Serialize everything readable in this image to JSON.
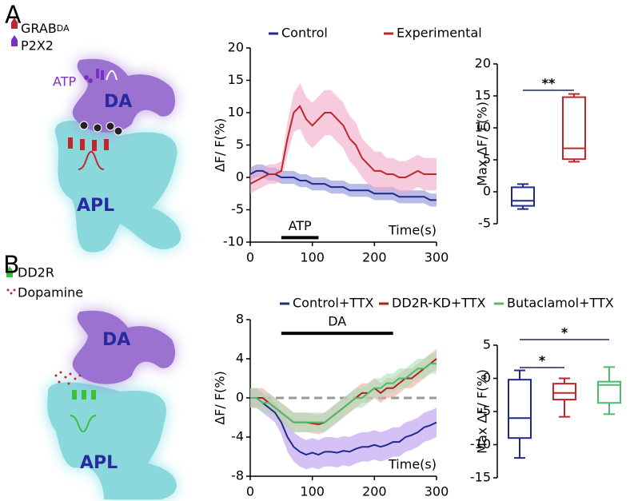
{
  "diagram": {
    "a": {
      "letter": "A",
      "legend": [
        {
          "main": "GRAB",
          "sub": "DA"
        },
        {
          "main": "P2X2"
        }
      ],
      "atp": "ATP",
      "top_cell": "DA",
      "bottom_cell": "APL"
    },
    "b": {
      "letter": "B",
      "legend": [
        {
          "main": "DD2R"
        },
        {
          "main": "Dopamine"
        }
      ],
      "top_cell": "DA",
      "bottom_cell": "APL"
    }
  },
  "chart_data": [
    {
      "type": "line",
      "ylabel": "ΔF/ F(%)",
      "xlabel": "Time(s)",
      "x": [
        0,
        10,
        20,
        30,
        40,
        50,
        60,
        70,
        80,
        90,
        100,
        110,
        120,
        130,
        140,
        150,
        160,
        170,
        180,
        190,
        200,
        210,
        220,
        230,
        240,
        250,
        260,
        270,
        280,
        290,
        300
      ],
      "series": [
        {
          "name": "Control",
          "color": "#1f2a8a",
          "band_color": "#8a8fd6",
          "values": [
            0.5,
            1,
            1,
            0.5,
            0.5,
            0,
            0,
            0,
            -0.5,
            -0.5,
            -1,
            -1,
            -1,
            -1.5,
            -1.5,
            -1.5,
            -2,
            -2,
            -2,
            -2,
            -2.5,
            -2.5,
            -2.5,
            -2.5,
            -3,
            -3,
            -3,
            -3,
            -3,
            -3.5,
            -3.5
          ],
          "error": [
            1,
            1,
            1,
            1,
            1,
            1,
            1,
            1,
            1,
            1,
            1,
            1,
            1,
            1,
            1,
            1,
            1,
            1,
            1,
            1,
            1,
            1,
            1,
            1,
            1,
            1,
            1,
            1,
            1,
            1,
            1
          ]
        },
        {
          "name": "Experimental",
          "color": "#c0272d",
          "band_color": "#f0a8c8",
          "values": [
            -1,
            -0.5,
            0,
            0.5,
            0.5,
            1,
            6,
            10,
            11,
            9,
            8,
            9,
            10,
            10,
            9,
            8,
            6,
            5,
            3,
            2,
            1,
            1,
            0.5,
            0.5,
            0,
            0,
            0.5,
            1,
            0.5,
            0.5,
            0.5
          ],
          "error": [
            1.5,
            1.5,
            1.5,
            1.5,
            1.5,
            1.5,
            2.5,
            3,
            3.5,
            3.5,
            3.5,
            3.5,
            3.5,
            3.5,
            3.5,
            3.5,
            3.5,
            3.5,
            3,
            3,
            3,
            3,
            2.5,
            2.5,
            2.5,
            2.5,
            2.5,
            2.5,
            2.5,
            2.5,
            2.5
          ]
        }
      ],
      "xlim": [
        0,
        300
      ],
      "xticks": [
        0,
        100,
        200,
        300
      ],
      "ylim": [
        -10,
        20
      ],
      "yticks": [
        -10,
        -5,
        0,
        5,
        10,
        15,
        20
      ],
      "annotation": {
        "label": "ATP",
        "x": [
          50,
          110
        ],
        "y": -9.3
      }
    },
    {
      "type": "box",
      "ylabel": "Max ΔF/ F(%)",
      "series": [
        {
          "color": "#1f2a8a",
          "min": -2.7,
          "q1": -2.2,
          "median": -1.4,
          "q3": 0.7,
          "max": 1.2
        },
        {
          "color": "#c0272d",
          "min": 4.7,
          "q1": 5.1,
          "median": 6.8,
          "q3": 14.8,
          "max": 15.3
        }
      ],
      "ylim": [
        -5,
        20
      ],
      "yticks": [
        -5,
        0,
        5,
        10,
        15,
        20
      ],
      "significance": [
        "**"
      ]
    },
    {
      "type": "line",
      "ylabel": "ΔF/ F(%)",
      "xlabel": "Time(s)",
      "x": [
        0,
        10,
        20,
        30,
        40,
        50,
        60,
        70,
        80,
        90,
        100,
        110,
        120,
        130,
        140,
        150,
        160,
        170,
        180,
        190,
        200,
        210,
        220,
        230,
        240,
        250,
        260,
        270,
        280,
        290,
        300
      ],
      "series": [
        {
          "name": "Control+TTX",
          "color": "#1f2a8a",
          "band_color": "#b79af0",
          "values": [
            0,
            0,
            -0.5,
            -1,
            -1.5,
            -2.5,
            -4,
            -5,
            -5.5,
            -5.8,
            -5.6,
            -5.8,
            -5.5,
            -5.5,
            -5.6,
            -5.4,
            -5.5,
            -5.2,
            -5,
            -5,
            -4.8,
            -5,
            -4.8,
            -4.5,
            -4.5,
            -4,
            -3.8,
            -3.5,
            -3,
            -2.8,
            -2.5
          ],
          "error": [
            1,
            1,
            1,
            1,
            1,
            1.2,
            1.5,
            1.5,
            1.5,
            1.5,
            1.5,
            1.5,
            1.5,
            1.5,
            1.5,
            1.5,
            1.5,
            1.5,
            1.5,
            1.5,
            1.5,
            1.5,
            1.5,
            1.5,
            1.5,
            1.5,
            1.5,
            1.5,
            1.5,
            1.5,
            1.5
          ]
        },
        {
          "name": "DD2R-KD+TTX",
          "color": "#b0201f",
          "band_color": "#f0a8a0",
          "values": [
            0,
            0,
            0,
            -0.5,
            -1,
            -1.5,
            -2,
            -2.5,
            -2.5,
            -2.5,
            -2.6,
            -2.7,
            -2.5,
            -2,
            -1.5,
            -1,
            -0.5,
            0,
            0.5,
            0.5,
            1,
            0.5,
            1,
            1,
            1.5,
            2,
            2,
            2.5,
            3,
            3.5,
            4
          ],
          "error": [
            1,
            1,
            1,
            1,
            1,
            1,
            1,
            1,
            1,
            1,
            1,
            1,
            1,
            1,
            1,
            1,
            1,
            1,
            1,
            1,
            1,
            1,
            1,
            1,
            1,
            1,
            1,
            1,
            1,
            1,
            1
          ]
        },
        {
          "name": "Butaclamol+TTX",
          "color": "#4cbb6c",
          "band_color": "#a8e0b8",
          "values": [
            0,
            0,
            -0.5,
            -0.5,
            -1,
            -1.5,
            -2,
            -2.5,
            -2.5,
            -2.5,
            -2.5,
            -2.5,
            -2.5,
            -2,
            -1.5,
            -1,
            -0.5,
            0,
            0,
            0.5,
            1,
            1,
            1.5,
            1.5,
            2,
            2,
            2.5,
            3,
            3,
            3.5,
            3.5
          ],
          "error": [
            1,
            1,
            1,
            1,
            1,
            1,
            1,
            1,
            1,
            1,
            1,
            1,
            1,
            1,
            1,
            1,
            1,
            1,
            1,
            1,
            1,
            1,
            1,
            1,
            1,
            1,
            1,
            1,
            1,
            1,
            1
          ]
        }
      ],
      "xlim": [
        0,
        300
      ],
      "xticks": [
        0,
        100,
        200,
        300
      ],
      "ylim": [
        -8,
        8
      ],
      "yticks": [
        -8,
        -4,
        0,
        4,
        8
      ],
      "zero_line": true,
      "annotation": {
        "label": "DA",
        "x": [
          50,
          230
        ],
        "y": 6.6
      }
    },
    {
      "type": "box",
      "ylabel": "Max ΔF/ F(%)",
      "series": [
        {
          "color": "#1f2a8a",
          "min": -12,
          "q1": -9,
          "median": -6,
          "q3": -0.2,
          "max": 1.2
        },
        {
          "color": "#c0272d",
          "min": -5.8,
          "q1": -3.2,
          "median": -2.2,
          "q3": -0.8,
          "max": 0
        },
        {
          "color": "#4cbb6c",
          "min": -5.4,
          "q1": -3.7,
          "median": -1,
          "q3": -0.5,
          "max": 1.7
        }
      ],
      "ylim": [
        -15,
        5
      ],
      "yticks": [
        -15,
        -10,
        -5,
        0,
        5
      ],
      "significance": [
        "*",
        "*"
      ]
    }
  ]
}
